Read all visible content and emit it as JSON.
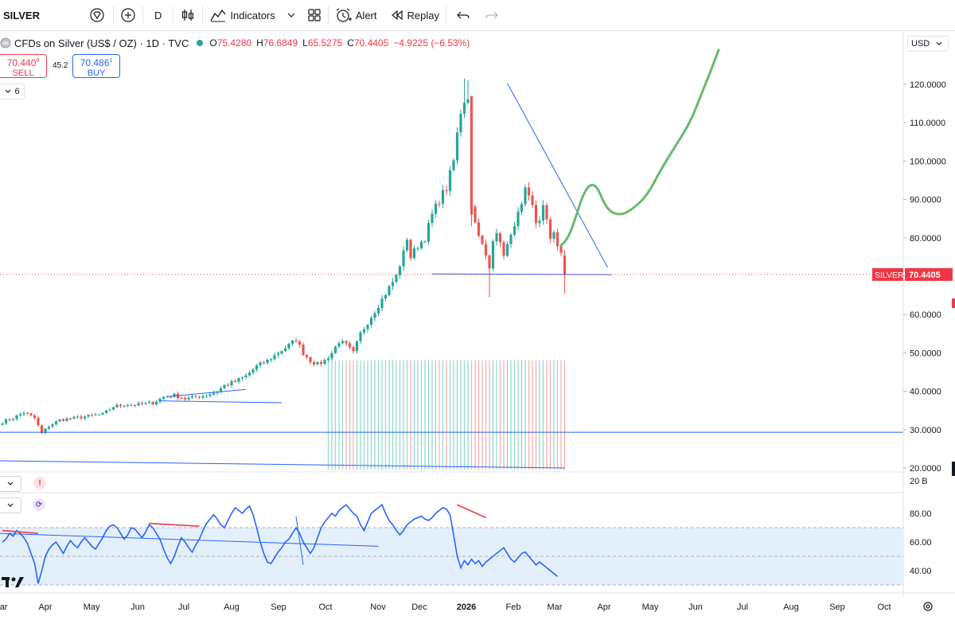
{
  "toolbar": {
    "symbol": "SILVER",
    "interval": "D",
    "indicators_label": "Indicators",
    "alert_label": "Alert",
    "replay_label": "Replay"
  },
  "legend": {
    "title": "CFDs on Silver (US$ / OZ) · 1D · TVC",
    "open_label": "O",
    "open": "75.4280",
    "high_label": "H",
    "high": "76.6849",
    "low_label": "L",
    "low": "65.5275",
    "close_label": "C",
    "close": "70.4405",
    "change": "−4.9225 (−6.53%)"
  },
  "trade": {
    "sell_price": "70.440",
    "sell_sup": "9",
    "sell_label": "SELL",
    "buy_price": "70.486",
    "buy_sup": "1",
    "buy_label": "BUY",
    "spread": "45.2"
  },
  "collapse_count": "6",
  "currency": "USD",
  "colors": {
    "up": "#26a69a",
    "down": "#ef5350",
    "trendline": "#2962ff",
    "projection": "#66bb6a",
    "rsi_line": "#2962ff",
    "rsi_band": "#e3f0fb",
    "divergence": "#f23645"
  },
  "chart_data": {
    "type": "candlestick",
    "symbol": "SILVER",
    "title": "CFDs on Silver (US$ / OZ) · 1D · TVC",
    "ylim": [
      18,
      128
    ],
    "y_ticks": [
      "120.0000",
      "110.0000",
      "100.0000",
      "90.0000",
      "80.0000",
      "70.0000",
      "60.0000",
      "50.0000",
      "40.0000",
      "30.0000",
      "20.0000"
    ],
    "x_ticks": [
      "Mar",
      "Apr",
      "May",
      "Jun",
      "Jul",
      "Aug",
      "Sep",
      "Oct",
      "Nov",
      "Dec",
      "2026",
      "Feb",
      "Mar",
      "Apr",
      "May",
      "Jun",
      "Jul",
      "Aug",
      "Sep",
      "Oct"
    ],
    "price_keypoints": [
      [
        0,
        32
      ],
      [
        3,
        33
      ],
      [
        6,
        34.5
      ],
      [
        9,
        33
      ],
      [
        11,
        29
      ],
      [
        13,
        31
      ],
      [
        16,
        32.5
      ],
      [
        20,
        33
      ],
      [
        24,
        33.5
      ],
      [
        28,
        34
      ],
      [
        31,
        36
      ],
      [
        34,
        36.5
      ],
      [
        38,
        36.5
      ],
      [
        42,
        37
      ],
      [
        45,
        38.5
      ],
      [
        48,
        39
      ],
      [
        51,
        38
      ],
      [
        54,
        38.5
      ],
      [
        57,
        39
      ],
      [
        60,
        40
      ],
      [
        62,
        41.5
      ],
      [
        65,
        42.5
      ],
      [
        68,
        44
      ],
      [
        71,
        46.5
      ],
      [
        74,
        48
      ],
      [
        77,
        50
      ],
      [
        80,
        52
      ],
      [
        82,
        53.5
      ],
      [
        84,
        50
      ],
      [
        86,
        48
      ],
      [
        88,
        47
      ],
      [
        90,
        48
      ],
      [
        92,
        50
      ],
      [
        94,
        53
      ],
      [
        96,
        52
      ],
      [
        98,
        50
      ],
      [
        100,
        55
      ],
      [
        102,
        58
      ],
      [
        104,
        61
      ],
      [
        106,
        64
      ],
      [
        108,
        67
      ],
      [
        110,
        70
      ],
      [
        112,
        76
      ],
      [
        113,
        80
      ],
      [
        114,
        75
      ],
      [
        116,
        78
      ],
      [
        118,
        80
      ],
      [
        120,
        86
      ],
      [
        122,
        90
      ],
      [
        124,
        93
      ],
      [
        126,
        100
      ],
      [
        127,
        107
      ],
      [
        128,
        113
      ],
      [
        129,
        116
      ],
      [
        130,
        117
      ],
      [
        131,
        88
      ],
      [
        132,
        85
      ],
      [
        133,
        80
      ],
      [
        134,
        78
      ],
      [
        135,
        75
      ],
      [
        136,
        72
      ],
      [
        137,
        80
      ],
      [
        138,
        82
      ],
      [
        139,
        78
      ],
      [
        140,
        76
      ],
      [
        141,
        78
      ],
      [
        142,
        80
      ],
      [
        143,
        84
      ],
      [
        144,
        86
      ],
      [
        145,
        88
      ],
      [
        146,
        92
      ],
      [
        147,
        90
      ],
      [
        148,
        88
      ],
      [
        149,
        84
      ],
      [
        150,
        85
      ],
      [
        151,
        88
      ],
      [
        152,
        84
      ],
      [
        153,
        80
      ],
      [
        154,
        82
      ],
      [
        155,
        78
      ],
      [
        156,
        75.4
      ]
    ],
    "last_candle": {
      "open": 75.428,
      "high": 76.6849,
      "low": 65.5275,
      "close": 70.4405
    },
    "last_price_label": "SILVER",
    "last_price": "70.4405",
    "volume": {
      "label": "20 B",
      "start_bar": 91,
      "end_bar": 156
    },
    "projection_points": [
      [
        156,
        78
      ],
      [
        158,
        80
      ],
      [
        160,
        85
      ],
      [
        162,
        91
      ],
      [
        164,
        94
      ],
      [
        166,
        93.5
      ],
      [
        168,
        89
      ],
      [
        170,
        86.5
      ],
      [
        173,
        86
      ],
      [
        176,
        87.5
      ],
      [
        180,
        91
      ],
      [
        184,
        98
      ],
      [
        188,
        104
      ],
      [
        192,
        110
      ],
      [
        195,
        117
      ],
      [
        198,
        124
      ],
      [
        200,
        129
      ]
    ],
    "rsi": {
      "ticks": [
        "80.00",
        "60.00",
        "40.00"
      ],
      "ylim": [
        28,
        92
      ],
      "band": [
        30,
        70
      ],
      "mid": 50,
      "values": [
        60,
        62,
        66,
        64,
        68,
        66,
        63,
        59,
        52,
        45,
        31,
        40,
        50,
        55,
        58,
        60,
        56,
        52,
        57,
        61,
        58,
        56,
        60,
        63,
        60,
        57,
        55,
        59,
        63,
        68,
        71,
        72,
        70,
        66,
        62,
        65,
        70,
        69,
        66,
        63,
        67,
        72,
        70,
        66,
        62,
        55,
        49,
        45,
        50,
        57,
        63,
        60,
        56,
        53,
        58,
        62,
        68,
        73,
        76,
        79,
        76,
        72,
        70,
        75,
        80,
        84,
        82,
        80,
        83,
        85,
        79,
        70,
        60,
        52,
        46,
        45,
        49,
        53,
        56,
        60,
        62,
        66,
        70,
        66,
        60,
        56,
        52,
        56,
        63,
        70,
        74,
        77,
        80,
        78,
        82,
        84,
        86,
        83,
        80,
        78,
        72,
        68,
        74,
        80,
        82,
        84,
        86,
        80,
        75,
        72,
        68,
        65,
        68,
        72,
        74,
        76,
        77,
        78,
        76,
        75,
        77,
        80,
        82,
        84,
        83,
        79,
        65,
        50,
        42,
        47,
        44,
        48,
        45,
        47,
        43,
        46,
        48,
        50,
        52,
        54,
        56,
        52,
        48,
        46,
        49,
        52,
        53,
        50,
        47,
        44,
        46,
        44,
        42,
        40,
        38,
        36
      ]
    },
    "grid": true,
    "legend": "top-left"
  }
}
